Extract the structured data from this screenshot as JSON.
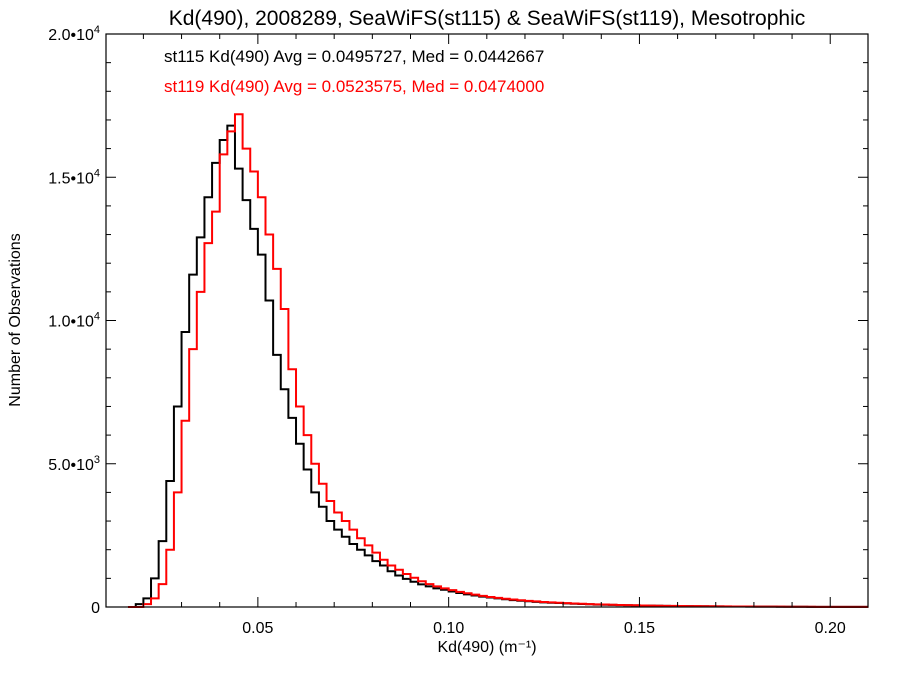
{
  "chart_data": {
    "type": "line",
    "subtype": "step-histogram",
    "title": "Kd(490), 2008289, SeaWiFS(st115) & SeaWiFS(st119), Mesotrophic",
    "xlabel": "Kd(490) (m⁻¹)",
    "ylabel": "Number of Observations",
    "xlim": [
      0.0102,
      0.2099
    ],
    "ylim": [
      0,
      20000
    ],
    "x_ticks": [
      0.05,
      0.1,
      0.15,
      0.2
    ],
    "x_tick_labels": [
      "0.05",
      "0.10",
      "0.15",
      "0.20"
    ],
    "x_minor_step": 0.01,
    "y_ticks": [
      0,
      5000,
      10000,
      15000,
      20000
    ],
    "y_tick_labels": [
      {
        "mant": "0",
        "exp": ""
      },
      {
        "mant": "5.0•10",
        "exp": "3"
      },
      {
        "mant": "1.0•10",
        "exp": "4"
      },
      {
        "mant": "1.5•10",
        "exp": "4"
      },
      {
        "mant": "2.0•10",
        "exp": "4"
      }
    ],
    "y_minor_step": 1000,
    "grid": false,
    "bin_start": 0.016,
    "bin_width": 0.002,
    "series": [
      {
        "name": "st115",
        "color": "#000000",
        "label": "st115 Kd(490) Avg = 0.0495727, Med = 0.0442667",
        "values": [
          0,
          100,
          300,
          1000,
          2300,
          4400,
          7000,
          9600,
          11600,
          12900,
          14300,
          15500,
          16300,
          16800,
          15300,
          14200,
          13200,
          12300,
          10700,
          8800,
          7600,
          6600,
          5700,
          4800,
          4000,
          3500,
          3000,
          2700,
          2450,
          2200,
          2000,
          1800,
          1600,
          1450,
          1250,
          1100,
          980,
          880,
          790,
          720,
          650,
          600,
          540,
          490,
          440,
          400,
          360,
          330,
          300,
          270,
          240,
          220,
          200,
          180,
          160,
          150,
          140,
          125,
          115,
          105,
          95,
          85,
          80,
          72,
          66,
          60,
          55,
          50,
          46,
          42,
          38,
          35,
          32,
          30,
          27,
          25,
          23,
          21,
          19,
          17,
          16,
          15,
          13,
          12,
          11,
          10,
          9,
          8,
          7,
          6,
          6,
          5,
          5,
          4,
          4,
          3,
          3
        ]
      },
      {
        "name": "st119",
        "color": "#ff0000",
        "label": "st119 Kd(490) Avg = 0.0523575, Med = 0.0474000",
        "values": [
          0,
          0,
          100,
          300,
          800,
          2000,
          4000,
          6500,
          9000,
          11000,
          12700,
          13800,
          15800,
          16600,
          17200,
          16000,
          15200,
          14300,
          13000,
          11800,
          10400,
          8300,
          7000,
          6000,
          5000,
          4300,
          3700,
          3300,
          3000,
          2700,
          2400,
          2150,
          1900,
          1650,
          1450,
          1300,
          1150,
          1020,
          900,
          800,
          720,
          650,
          590,
          530,
          480,
          430,
          390,
          350,
          320,
          290,
          260,
          235,
          215,
          195,
          175,
          160,
          150,
          135,
          122,
          112,
          102,
          92,
          86,
          78,
          71,
          65,
          59,
          54,
          50,
          45,
          41,
          38,
          34,
          32,
          29,
          27,
          25,
          23,
          21,
          19,
          17,
          16,
          14,
          13,
          12,
          11,
          10,
          9,
          8,
          7,
          6,
          6,
          5,
          5,
          4,
          3,
          3
        ]
      }
    ]
  }
}
